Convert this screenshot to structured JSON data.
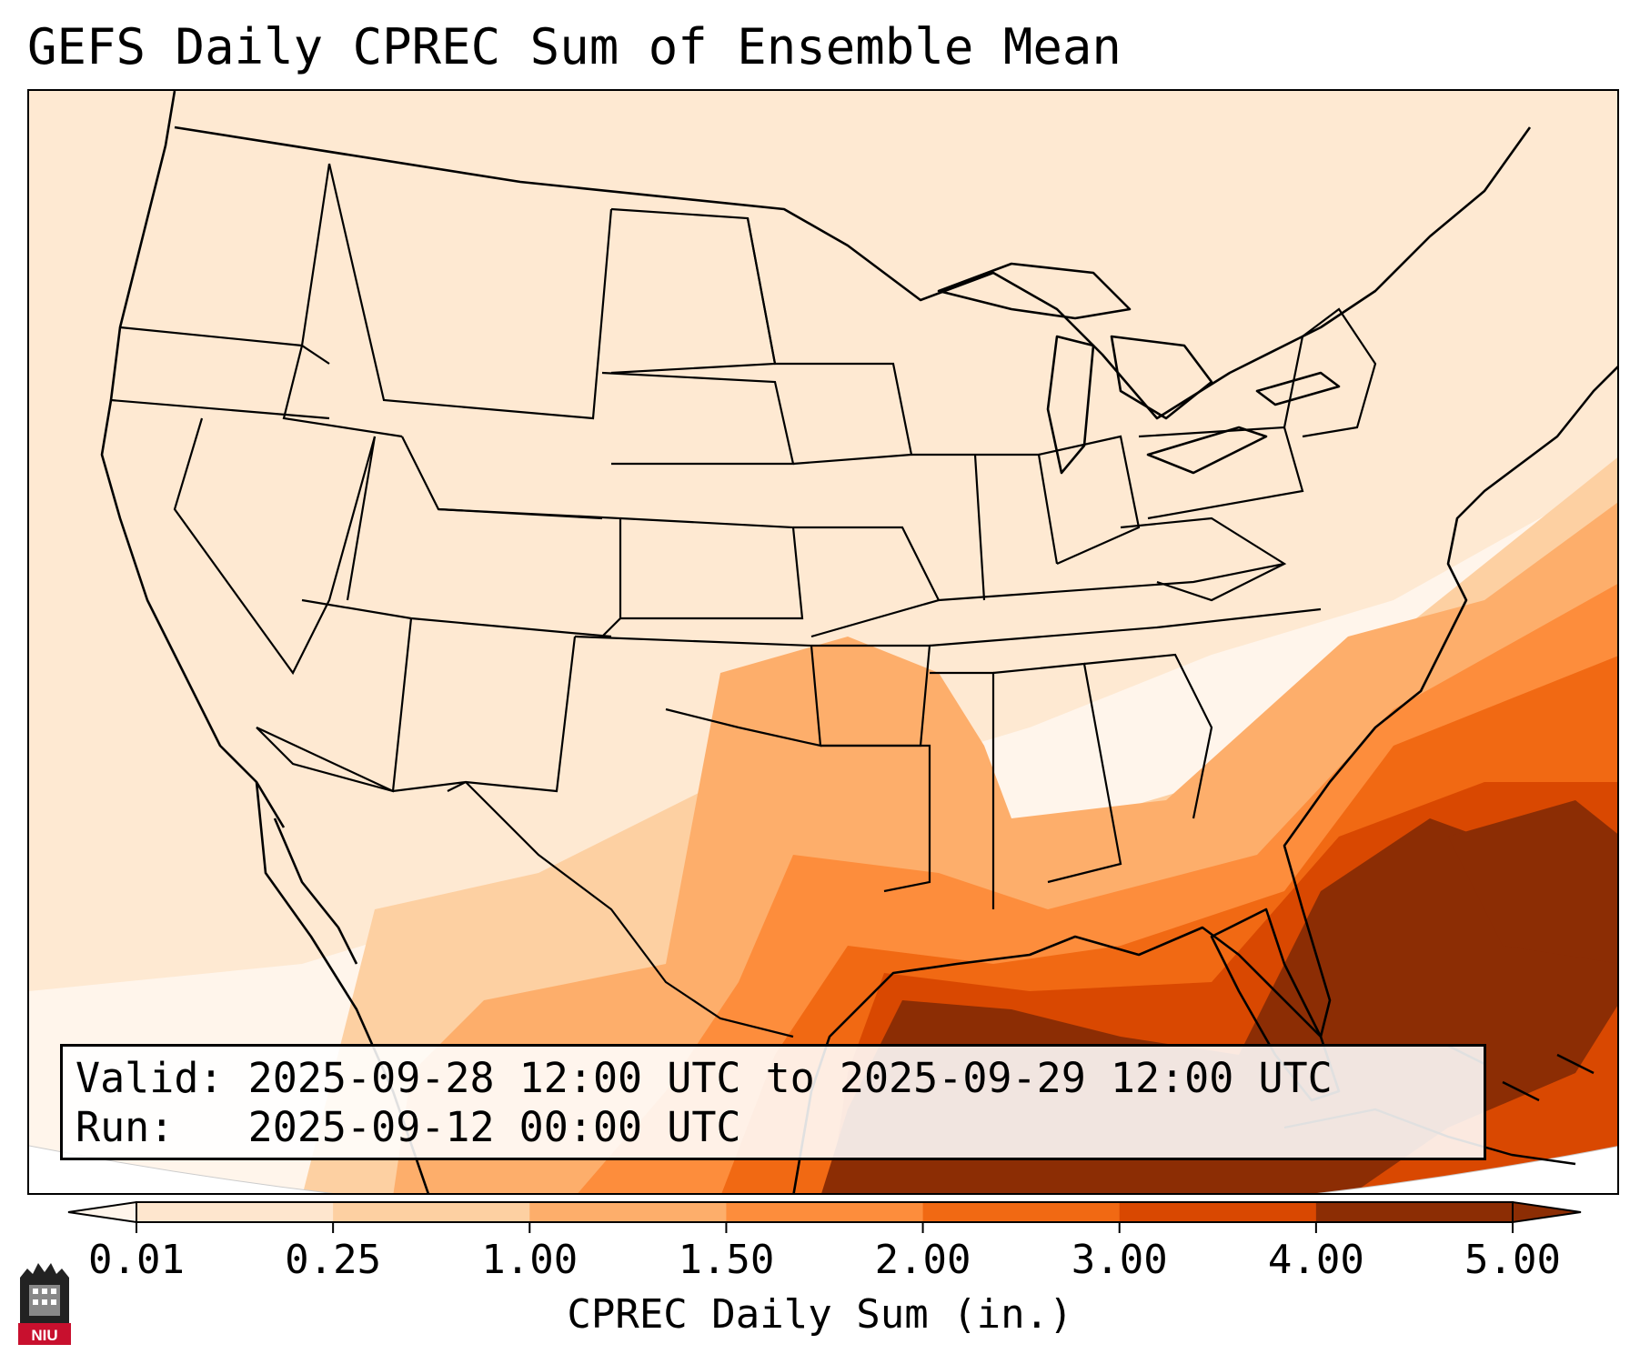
{
  "title": "GEFS Daily CPREC Sum of Ensemble Mean",
  "info": {
    "valid_label": "Valid:",
    "valid_value": "2025-09-28 12:00 UTC to 2025-09-29 12:00 UTC",
    "run_label": "Run:",
    "run_value": "2025-09-12 00:00 UTC"
  },
  "colorbar": {
    "label": "CPREC Daily Sum (in.)",
    "ticks": [
      "0.01",
      "0.25",
      "1.00",
      "1.50",
      "2.00",
      "3.00",
      "4.00",
      "5.00"
    ],
    "colors": [
      "#fff5eb",
      "#fee6ce",
      "#fdd0a2",
      "#fdae6b",
      "#fd8d3c",
      "#f16913",
      "#d94801",
      "#8c2d04"
    ],
    "extend": "both"
  },
  "logo": {
    "text": "NIU",
    "icon": "university-tower-icon"
  },
  "map_region": "Contiguous United States, northern Mexico, Gulf of Mexico, western Atlantic"
}
